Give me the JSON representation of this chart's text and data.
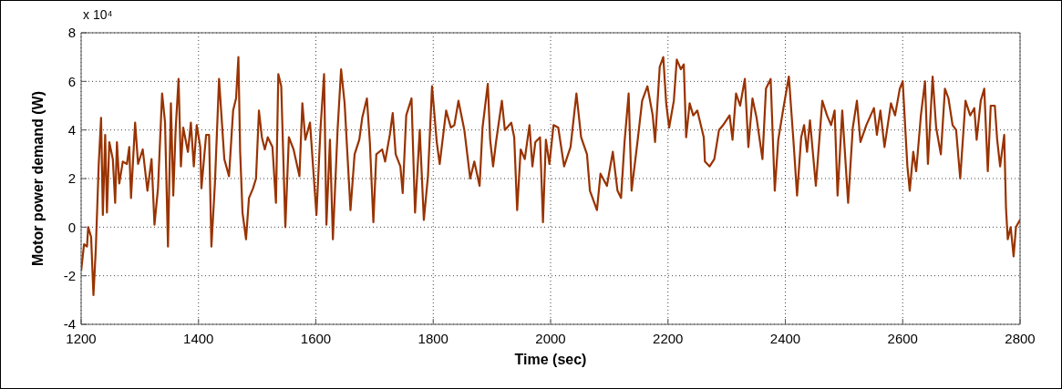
{
  "chart_data": {
    "type": "line",
    "xlabel": "Time (sec)",
    "ylabel": "Motor power demand (W)",
    "annotations": [
      "x 10⁴"
    ],
    "xlim": [
      1200,
      2800
    ],
    "xticks": [
      1200,
      1400,
      1600,
      1800,
      2000,
      2200,
      2400,
      2600,
      2800
    ],
    "ylim": [
      -4,
      8
    ],
    "yticks": [
      -4,
      -2,
      0,
      2,
      4,
      6,
      8
    ],
    "grid": true,
    "legend": false,
    "marker": "none",
    "line_style": "solid",
    "series": [
      {
        "color": "#993300",
        "x": [
          1200,
          1205,
          1210,
          1212,
          1217,
          1221,
          1225,
          1230,
          1234,
          1237,
          1241,
          1244,
          1248,
          1254,
          1258,
          1261,
          1265,
          1271,
          1278,
          1282,
          1285,
          1292,
          1297,
          1305,
          1313,
          1320,
          1325,
          1331,
          1338,
          1343,
          1348,
          1353,
          1357,
          1361,
          1366,
          1370,
          1374,
          1382,
          1387,
          1392,
          1397,
          1403,
          1405,
          1413,
          1418,
          1422,
          1428,
          1435,
          1444,
          1452,
          1459,
          1464,
          1468,
          1471,
          1475,
          1481,
          1486,
          1493,
          1498,
          1503,
          1508,
          1513,
          1518,
          1526,
          1532,
          1536,
          1541,
          1548,
          1554,
          1562,
          1572,
          1577,
          1582,
          1590,
          1601,
          1608,
          1614,
          1618,
          1624,
          1629,
          1637,
          1643,
          1649,
          1659,
          1666,
          1674,
          1679,
          1687,
          1692,
          1698,
          1703,
          1713,
          1718,
          1726,
          1731,
          1736,
          1744,
          1748,
          1754,
          1763,
          1769,
          1777,
          1784,
          1791,
          1798,
          1806,
          1811,
          1822,
          1830,
          1836,
          1843,
          1853,
          1863,
          1870,
          1879,
          1884,
          1893,
          1897,
          1902,
          1907,
          1917,
          1922,
          1933,
          1938,
          1943,
          1949,
          1956,
          1964,
          1969,
          1974,
          1982,
          1987,
          1992,
          1998,
          2005,
          2013,
          2023,
          2034,
          2044,
          2052,
          2062,
          2067,
          2079,
          2085,
          2096,
          2106,
          2114,
          2120,
          2126,
          2133,
          2138,
          2148,
          2156,
          2165,
          2174,
          2178,
          2186,
          2192,
          2197,
          2202,
          2210,
          2215,
          2222,
          2227,
          2231,
          2237,
          2243,
          2250,
          2261,
          2263,
          2271,
          2279,
          2287,
          2294,
          2305,
          2310,
          2316,
          2323,
          2331,
          2337,
          2344,
          2351,
          2361,
          2367,
          2375,
          2382,
          2388,
          2396,
          2406,
          2414,
          2420,
          2427,
          2432,
          2437,
          2442,
          2452,
          2463,
          2471,
          2478,
          2484,
          2489,
          2497,
          2507,
          2515,
          2522,
          2528,
          2538,
          2551,
          2556,
          2562,
          2569,
          2580,
          2587,
          2595,
          2600,
          2608,
          2612,
          2618,
          2623,
          2631,
          2638,
          2643,
          2651,
          2657,
          2665,
          2672,
          2678,
          2685,
          2691,
          2698,
          2707,
          2715,
          2722,
          2726,
          2733,
          2739,
          2745,
          2750,
          2757,
          2761,
          2766,
          2773,
          2776,
          2779,
          2784,
          2789,
          2793,
          2800
        ],
        "values": [
          -1.8,
          -0.7,
          -0.8,
          0,
          -0.4,
          -2.8,
          -0.9,
          2.6,
          4.5,
          0.5,
          3.8,
          0.6,
          3.5,
          2.8,
          1.0,
          3.5,
          1.8,
          2.7,
          2.6,
          3.3,
          1.2,
          4.3,
          2.6,
          3.2,
          1.5,
          2.8,
          0.1,
          1.6,
          5.5,
          4.3,
          -0.8,
          5.1,
          1.3,
          4.0,
          6.1,
          2.5,
          4.1,
          3.1,
          4.3,
          2.5,
          4.2,
          3.3,
          1.6,
          3.8,
          3.8,
          -0.8,
          1.8,
          6.1,
          2.8,
          2.1,
          4.8,
          5.3,
          7.0,
          3.1,
          0.6,
          -0.5,
          1.2,
          1.6,
          2.0,
          4.8,
          3.7,
          3.2,
          3.7,
          3.3,
          1.0,
          6.3,
          5.8,
          0.0,
          3.7,
          3.2,
          2.1,
          5.1,
          3.6,
          4.3,
          0.5,
          4.1,
          6.3,
          0.1,
          3.6,
          -0.5,
          4.0,
          6.5,
          5.1,
          0.7,
          3.0,
          3.6,
          4.5,
          5.3,
          3.5,
          0.2,
          3.0,
          3.2,
          2.7,
          3.8,
          4.7,
          3.0,
          2.5,
          1.4,
          4.6,
          5.3,
          0.6,
          4.0,
          0.3,
          2.1,
          5.8,
          3.5,
          2.6,
          4.8,
          4.1,
          4.2,
          5.2,
          4.0,
          2.0,
          2.7,
          1.7,
          4.1,
          5.9,
          3.6,
          2.5,
          3.5,
          5.2,
          4.0,
          4.3,
          3.7,
          0.7,
          3.2,
          2.8,
          4.2,
          2.5,
          3.5,
          3.7,
          0.2,
          3.6,
          2.6,
          4.2,
          4.1,
          2.5,
          3.3,
          5.5,
          3.7,
          3.0,
          1.5,
          0.7,
          2.2,
          1.7,
          3.1,
          1.5,
          1.2,
          3.5,
          5.5,
          1.5,
          3.5,
          5.2,
          5.8,
          4.6,
          3.5,
          6.6,
          7.0,
          5.1,
          4.1,
          5.2,
          6.9,
          6.5,
          6.7,
          3.7,
          5.1,
          4.6,
          4.8,
          3.7,
          2.7,
          2.5,
          2.8,
          4.0,
          4.2,
          4.6,
          3.6,
          5.5,
          5.0,
          6.1,
          3.3,
          5.3,
          4.5,
          2.8,
          5.7,
          6.1,
          1.5,
          3.6,
          4.8,
          6.2,
          3.5,
          1.3,
          3.7,
          4.2,
          3.1,
          4.4,
          1.7,
          5.2,
          4.6,
          4.2,
          4.8,
          1.3,
          4.8,
          1.0,
          4.1,
          5.2,
          3.5,
          4.2,
          4.9,
          3.8,
          4.8,
          3.3,
          5.1,
          4.6,
          5.7,
          6.0,
          2.5,
          1.5,
          3.1,
          2.3,
          4.6,
          6.0,
          2.6,
          6.2,
          4.1,
          3.0,
          5.7,
          5.3,
          4.2,
          4.0,
          2.0,
          5.2,
          4.6,
          4.9,
          3.6,
          5.2,
          5.7,
          2.3,
          5.0,
          5.0,
          3.6,
          2.5,
          3.8,
          0.8,
          -0.5,
          0,
          -1.2,
          0,
          0.3
        ]
      }
    ]
  }
}
